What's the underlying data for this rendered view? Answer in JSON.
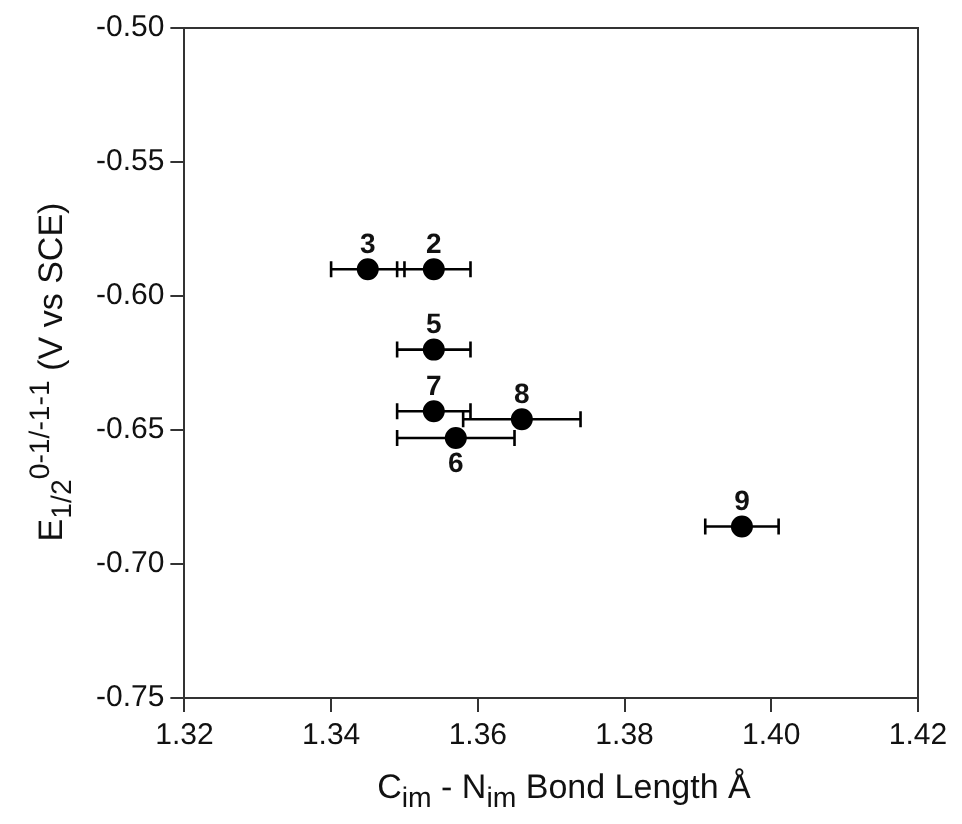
{
  "chart_data": {
    "type": "scatter",
    "xlabel": "C$_{im}$ - N$_{im}$ Bond Length Å",
    "ylabel": "E$_{1/2}$$^{0-1/-1-1}$ (V vs SCE)",
    "x": [
      1.345,
      1.354,
      1.354,
      1.354,
      1.366,
      1.357,
      1.396
    ],
    "series": [
      {
        "color": "#000000",
        "values": [
          -0.59,
          -0.59,
          -0.62,
          -0.643,
          -0.646,
          -0.653,
          -0.686
        ],
        "xerrors": [
          0.005,
          0.005,
          0.005,
          0.005,
          0.008,
          0.008,
          0.005
        ]
      }
    ],
    "xlim": [
      1.32,
      1.42
    ],
    "xticks": [
      {
        "value": 1.32,
        "label": "1.32"
      },
      1.34,
      1.36,
      1.38,
      {
        "value": 1.4,
        "label": "1.40"
      },
      1.42
    ],
    "ylim": [
      -0.75,
      -0.5
    ],
    "yticks": [
      {
        "value": -0.75,
        "label": "-0.75"
      },
      {
        "value": -0.7,
        "label": "-0.70"
      },
      {
        "value": -0.65,
        "label": "-0.65"
      },
      {
        "value": -0.6,
        "label": "-0.60"
      },
      {
        "value": -0.55,
        "label": "-0.55"
      },
      {
        "value": -0.5,
        "label": "-0.50"
      }
    ],
    "annotations": [
      {
        "text": "3",
        "x": 1.345,
        "y": -0.59
      },
      {
        "text": "2",
        "x": 1.354,
        "y": -0.59
      },
      {
        "text": "5",
        "x": 1.354,
        "y": -0.62
      },
      {
        "text": "7",
        "x": 1.354,
        "y": -0.643
      },
      {
        "text": "8",
        "x": 1.366,
        "y": -0.646
      },
      {
        "text": "6",
        "x": 1.357,
        "y": -0.653
      },
      {
        "text": "9",
        "x": 1.396,
        "y": -0.686
      }
    ],
    "grid": false,
    "legend": false,
    "marker": "circle"
  }
}
